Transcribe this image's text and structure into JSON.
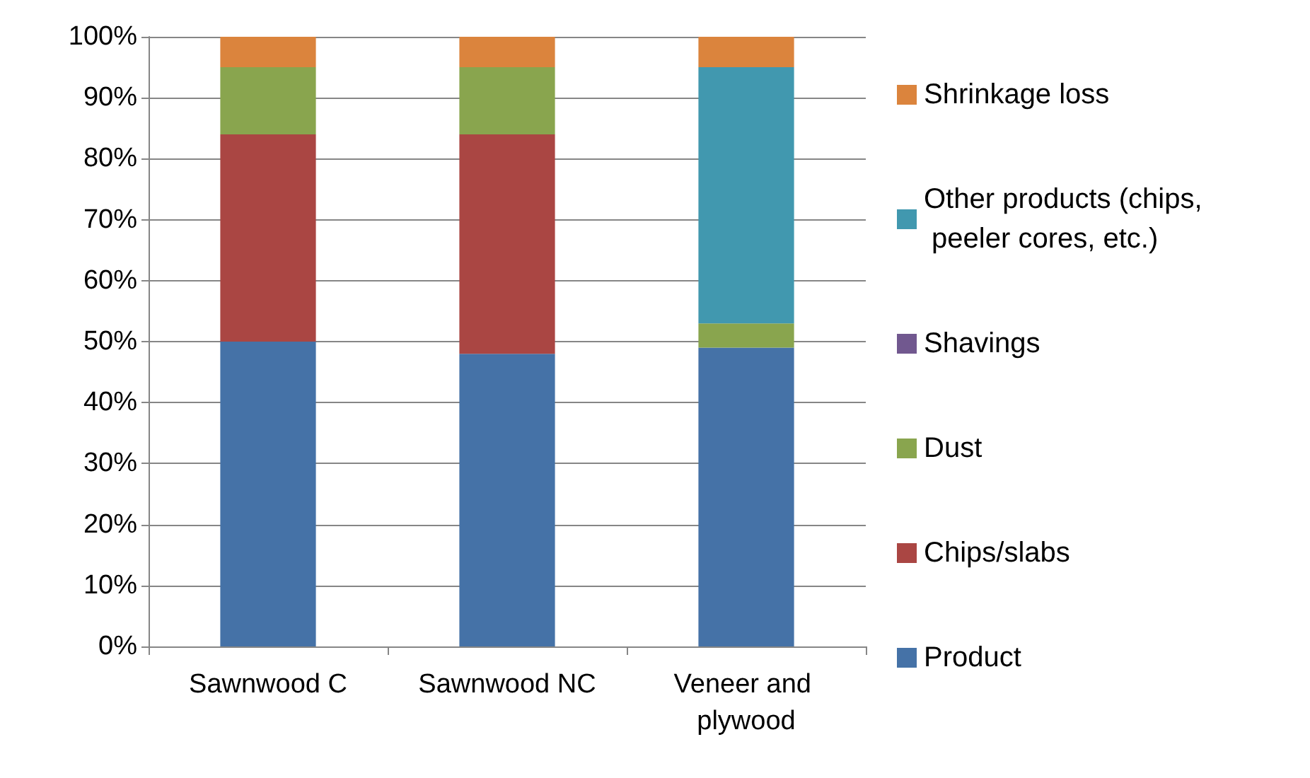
{
  "chart_data": {
    "type": "bar",
    "stacked": true,
    "categories": [
      "Sawnwood C",
      "Sawnwood NC",
      "Veneer and plywood"
    ],
    "series": [
      {
        "name": "Product",
        "color": "#4572a7",
        "values": [
          50,
          48,
          49
        ]
      },
      {
        "name": "Chips/slabs",
        "color": "#aa4643",
        "values": [
          34,
          36,
          0
        ]
      },
      {
        "name": "Dust",
        "color": "#89a54e",
        "values": [
          11,
          11,
          4
        ]
      },
      {
        "name": "Shavings",
        "color": "#71588f",
        "values": [
          0,
          0,
          0
        ]
      },
      {
        "name": "Other products (chips, peeler cores, etc.)",
        "color": "#4198af",
        "values": [
          0,
          0,
          42
        ]
      },
      {
        "name": "Shrinkage loss",
        "color": "#db843d",
        "values": [
          5,
          5,
          5
        ]
      }
    ],
    "ylim": [
      0,
      100
    ],
    "yticks": [
      {
        "value": 0,
        "label": "0%"
      },
      {
        "value": 10,
        "label": "10%"
      },
      {
        "value": 20,
        "label": "20%"
      },
      {
        "value": 30,
        "label": "30%"
      },
      {
        "value": 40,
        "label": "40%"
      },
      {
        "value": 50,
        "label": "50%"
      },
      {
        "value": 60,
        "label": "60%"
      },
      {
        "value": 70,
        "label": "70%"
      },
      {
        "value": 80,
        "label": "80%"
      },
      {
        "value": 90,
        "label": "90%"
      },
      {
        "value": 100,
        "label": "100%"
      }
    ],
    "grid": "y",
    "legend": "right"
  }
}
